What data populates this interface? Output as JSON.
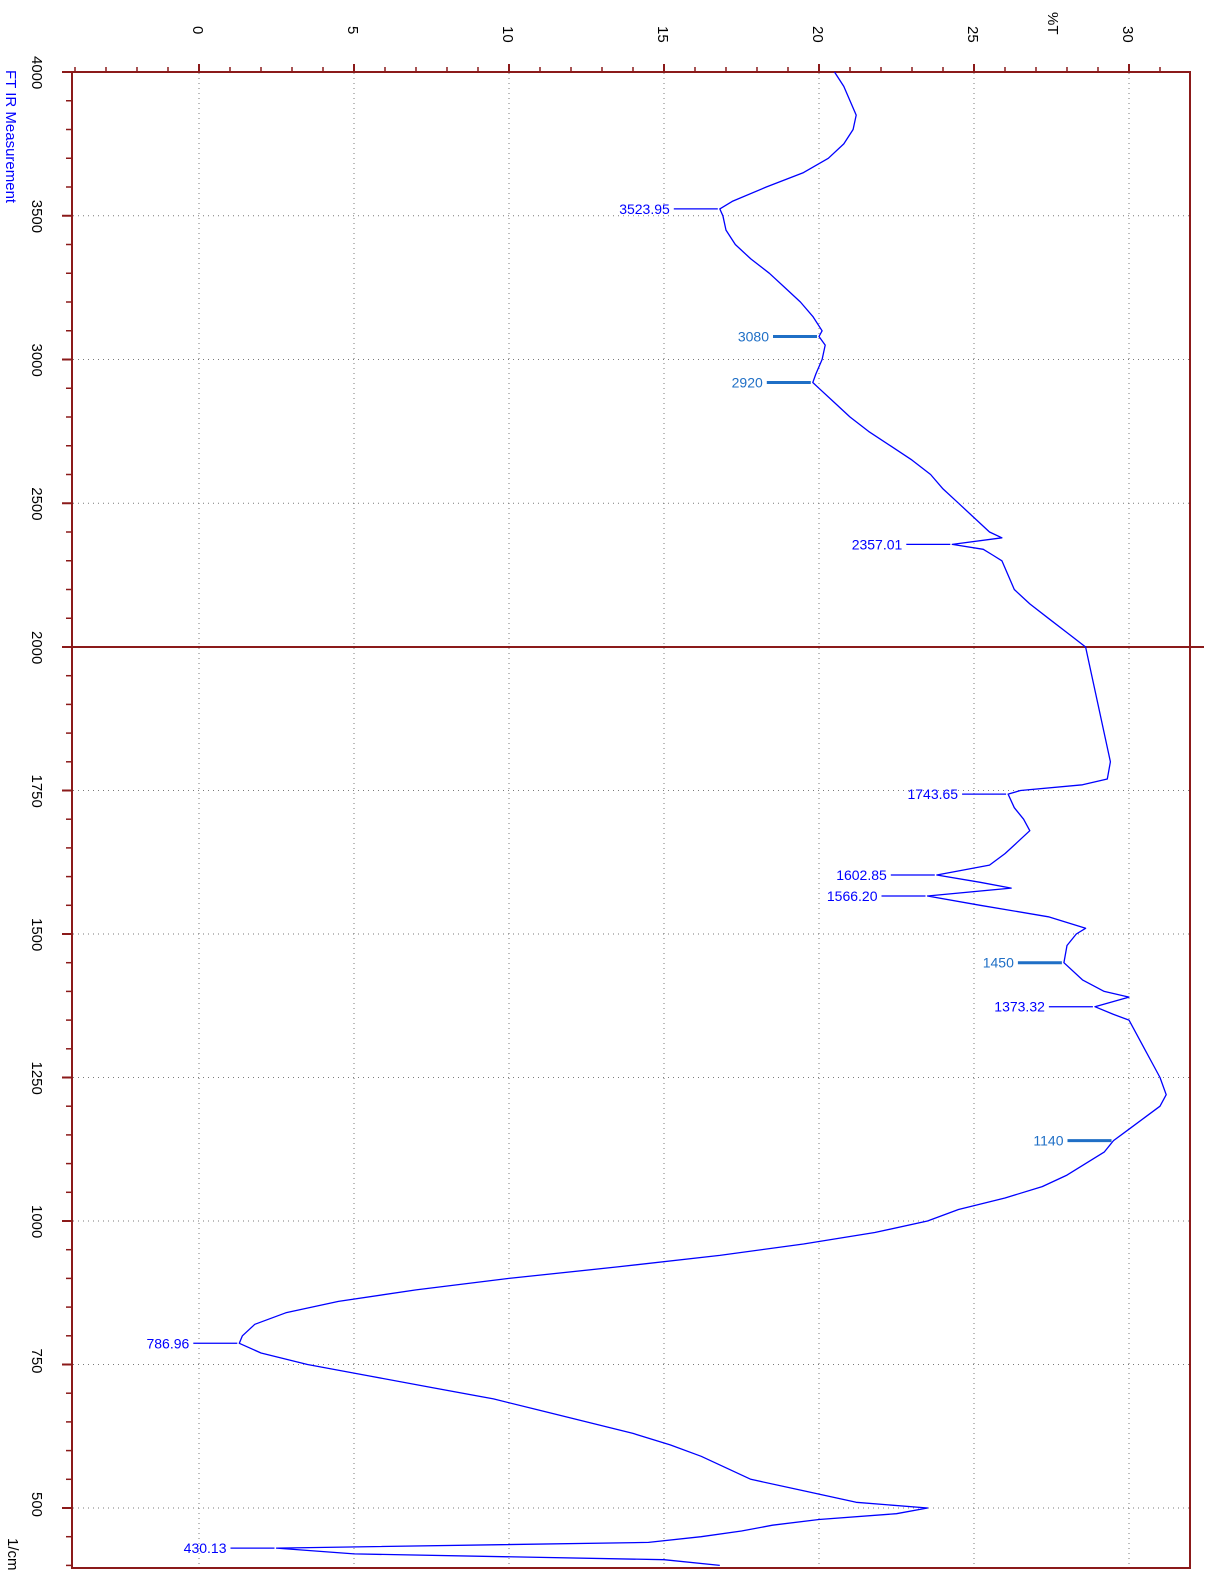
{
  "chart_data": {
    "type": "line",
    "title": "FT IR Measurement",
    "xlabel": "1/cm",
    "ylabel": "%T",
    "x_axis_layout": "vertical, 4000 at top to 400 at bottom",
    "y_axis_layout": "horizontal, increasing to the right, labels rotated 90 degrees",
    "xlim": [
      4000,
      400
    ],
    "ylim": [
      -4,
      33
    ],
    "x_ticks": [
      "4000",
      "3500",
      "3000",
      "2500",
      "2000",
      "1750",
      "1500",
      "1250",
      "1000",
      "750",
      "500"
    ],
    "y_ticks": [
      "0",
      "5",
      "10",
      "15",
      "20",
      "25",
      "30"
    ],
    "grid": "dotted",
    "axis_color": "#8b1a1a",
    "line_color": "#0000ff",
    "x_scale_break": 2000,
    "series": [
      {
        "x": [
          4000,
          3950,
          3900,
          3850,
          3800,
          3750,
          3700,
          3650,
          3600,
          3550,
          3523.95,
          3500,
          3450,
          3400,
          3350,
          3300,
          3250,
          3200,
          3150,
          3100,
          3080,
          3050,
          3000,
          2950,
          2920,
          2900,
          2850,
          2800,
          2750,
          2700,
          2650,
          2600,
          2550,
          2500,
          2450,
          2400,
          2380,
          2357.01,
          2340,
          2320,
          2300,
          2250,
          2200,
          2150,
          2100,
          2050,
          2000,
          1950,
          1900,
          1850,
          1800,
          1770,
          1760,
          1750,
          1743.65,
          1720,
          1700,
          1680,
          1660,
          1640,
          1620,
          1602.85,
          1590,
          1580,
          1566.2,
          1550,
          1530,
          1520,
          1510,
          1500,
          1480,
          1450,
          1420,
          1400,
          1390,
          1373.32,
          1360,
          1350,
          1330,
          1300,
          1270,
          1250,
          1220,
          1200,
          1180,
          1160,
          1140,
          1120,
          1100,
          1080,
          1060,
          1040,
          1020,
          1000,
          980,
          960,
          940,
          920,
          900,
          880,
          860,
          840,
          820,
          800,
          786.96,
          770,
          750,
          730,
          710,
          690,
          670,
          650,
          630,
          610,
          590,
          570,
          550,
          530,
          510,
          500,
          490,
          480,
          470,
          460,
          450,
          440,
          430.13,
          420,
          410,
          400
        ],
        "y": [
          20.5,
          20.8,
          21.0,
          21.2,
          21.1,
          20.8,
          20.3,
          19.5,
          18.3,
          17.2,
          16.8,
          16.9,
          17.0,
          17.3,
          17.8,
          18.4,
          18.9,
          19.4,
          19.8,
          20.1,
          20.0,
          20.2,
          20.1,
          19.9,
          19.8,
          20.0,
          20.5,
          21.0,
          21.6,
          22.3,
          23.0,
          23.6,
          24.0,
          24.5,
          25.0,
          25.5,
          25.9,
          24.3,
          25.3,
          25.6,
          25.9,
          26.1,
          26.3,
          26.8,
          27.4,
          28.0,
          28.6,
          28.8,
          29.0,
          29.2,
          29.4,
          29.3,
          28.5,
          26.5,
          26.1,
          26.3,
          26.6,
          26.8,
          26.4,
          26.0,
          25.5,
          23.8,
          25.2,
          26.2,
          23.5,
          25.2,
          27.4,
          28.0,
          28.6,
          28.3,
          28.0,
          27.9,
          28.5,
          29.2,
          30.0,
          28.9,
          29.5,
          30.0,
          30.2,
          30.5,
          30.8,
          31.0,
          31.2,
          31.0,
          30.5,
          30.0,
          29.5,
          29.2,
          28.6,
          28.0,
          27.2,
          26.0,
          24.5,
          23.5,
          21.8,
          19.5,
          16.8,
          13.5,
          10.0,
          7.0,
          4.5,
          2.8,
          1.8,
          1.4,
          1.3,
          2.0,
          3.5,
          5.5,
          7.5,
          9.5,
          11.0,
          12.5,
          14.0,
          15.2,
          16.2,
          17.0,
          17.8,
          19.5,
          21.2,
          23.5,
          22.5,
          20.0,
          18.5,
          17.5,
          16.2,
          14.5,
          2.5,
          5.0,
          15.0,
          16.8
        ]
      }
    ],
    "peak_labels": [
      {
        "text": "3523.95",
        "x": 3523.95,
        "y": 16.8,
        "color": "#0000ff"
      },
      {
        "text": "3080",
        "x": 3080,
        "y": 20.0,
        "color": "#1f6fc6"
      },
      {
        "text": "2920",
        "x": 2920,
        "y": 19.8,
        "color": "#1f6fc6"
      },
      {
        "text": "2357.01",
        "x": 2357.01,
        "y": 24.3,
        "color": "#0000ff"
      },
      {
        "text": "1743.65",
        "x": 1743.65,
        "y": 26.1,
        "color": "#0000ff"
      },
      {
        "text": "1602.85",
        "x": 1602.85,
        "y": 23.8,
        "color": "#0000ff"
      },
      {
        "text": "1566.20",
        "x": 1566.2,
        "y": 23.5,
        "color": "#0000ff"
      },
      {
        "text": "1450",
        "x": 1450,
        "y": 27.9,
        "color": "#1f6fc6"
      },
      {
        "text": "1373.32",
        "x": 1373.32,
        "y": 28.9,
        "color": "#0000ff"
      },
      {
        "text": "1140",
        "x": 1140,
        "y": 29.5,
        "color": "#1f6fc6"
      },
      {
        "text": "786.96",
        "x": 786.96,
        "y": 1.3,
        "color": "#0000ff"
      },
      {
        "text": "430.13",
        "x": 430.13,
        "y": 2.5,
        "color": "#0000ff"
      }
    ]
  }
}
